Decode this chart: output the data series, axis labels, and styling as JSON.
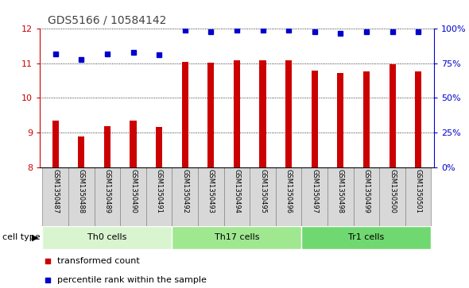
{
  "title": "GDS5166 / 10584142",
  "samples": [
    "GSM1350487",
    "GSM1350488",
    "GSM1350489",
    "GSM1350490",
    "GSM1350491",
    "GSM1350492",
    "GSM1350493",
    "GSM1350494",
    "GSM1350495",
    "GSM1350496",
    "GSM1350497",
    "GSM1350498",
    "GSM1350499",
    "GSM1350500",
    "GSM1350501"
  ],
  "transformed_count": [
    9.35,
    8.88,
    9.18,
    9.35,
    9.15,
    11.05,
    11.02,
    11.08,
    11.08,
    11.08,
    10.78,
    10.72,
    10.77,
    10.98,
    10.77
  ],
  "percentile_rank": [
    82,
    78,
    82,
    83,
    81,
    99,
    98,
    99,
    99,
    99,
    98,
    97,
    98,
    98,
    98
  ],
  "cell_types": [
    {
      "label": "Th0 cells",
      "start": 0,
      "end": 5,
      "color": "#d8f5d0"
    },
    {
      "label": "Th17 cells",
      "start": 5,
      "end": 10,
      "color": "#a0e890"
    },
    {
      "label": "Tr1 cells",
      "start": 10,
      "end": 15,
      "color": "#70d870"
    }
  ],
  "ylim_left": [
    8,
    12
  ],
  "ylim_right": [
    0,
    100
  ],
  "yticks_left": [
    8,
    9,
    10,
    11,
    12
  ],
  "yticks_right": [
    0,
    25,
    50,
    75,
    100
  ],
  "ytick_labels_right": [
    "0%",
    "25%",
    "50%",
    "75%",
    "100%"
  ],
  "bar_color": "#cc0000",
  "dot_color": "#0000cc",
  "bar_width": 0.25,
  "legend_bar_label": "transformed count",
  "legend_dot_label": "percentile rank within the sample",
  "cell_type_label": "cell type",
  "background_color": "#d8d8d8",
  "plot_bg_color": "#ffffff",
  "title_color": "#444444",
  "left_axis_color": "#cc0000",
  "right_axis_color": "#0000cc"
}
